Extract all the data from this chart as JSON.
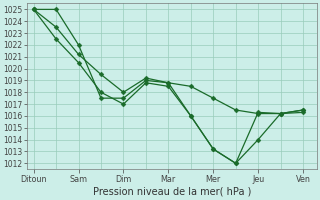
{
  "xlabel_label": "Pression niveau de la mer( hPa )",
  "background_color": "#cceee8",
  "grid_color": "#99ccbb",
  "line_color": "#1a6b2a",
  "ylim_min": 1011.5,
  "ylim_max": 1025.5,
  "yticks": [
    1012,
    1013,
    1014,
    1015,
    1016,
    1017,
    1018,
    1019,
    1020,
    1021,
    1022,
    1023,
    1024,
    1025
  ],
  "x_labels": [
    "Ditoun",
    "Sam",
    "Dim",
    "Mar",
    "Mer",
    "Jeu",
    "Ven"
  ],
  "x_tick_pos": [
    0,
    1,
    2,
    3,
    4,
    5,
    6
  ],
  "xlim_min": -0.15,
  "xlim_max": 6.3,
  "series1_x": [
    0,
    0.5,
    1.0,
    1.5,
    2.0,
    2.5,
    3.0,
    3.5,
    4.0,
    4.5,
    5.0,
    5.5,
    6.0
  ],
  "series1_y": [
    1025.0,
    1025.0,
    1022.0,
    1017.5,
    1017.5,
    1019.0,
    1018.8,
    1018.5,
    1017.5,
    1016.5,
    1016.2,
    1016.2,
    1016.3
  ],
  "series2_x": [
    0,
    0.5,
    1.0,
    1.5,
    2.0,
    2.5,
    3.0,
    3.5,
    4.0,
    4.5,
    5.0,
    5.5,
    6.0
  ],
  "series2_y": [
    1025.0,
    1023.5,
    1021.2,
    1019.5,
    1018.0,
    1019.2,
    1018.8,
    1016.0,
    1013.2,
    1012.0,
    1016.3,
    1016.2,
    1016.5
  ],
  "series3_x": [
    0,
    0.5,
    1.0,
    1.5,
    2.0,
    2.5,
    3.0,
    3.5,
    4.0,
    4.5,
    5.0,
    5.5,
    6.0
  ],
  "series3_y": [
    1025.0,
    1022.5,
    1020.5,
    1018.0,
    1017.0,
    1018.8,
    1018.5,
    1016.0,
    1013.2,
    1012.0,
    1014.0,
    1016.2,
    1016.5
  ],
  "marker_size": 2.5,
  "line_width": 0.9,
  "ytick_fontsize": 5.5,
  "xtick_fontsize": 5.8,
  "xlabel_fontsize": 7.0
}
